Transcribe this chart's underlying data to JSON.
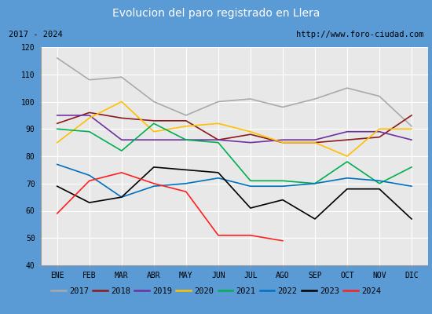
{
  "title": "Evolucion del paro registrado en Llera",
  "title_color": "#ffffff",
  "title_bg": "#5b9bd5",
  "subtitle_left": "2017 - 2024",
  "subtitle_right": "http://www.foro-ciudad.com",
  "months": [
    "ENE",
    "FEB",
    "MAR",
    "ABR",
    "MAY",
    "JUN",
    "JUL",
    "AGO",
    "SEP",
    "OCT",
    "NOV",
    "DIC"
  ],
  "ylim": [
    40,
    120
  ],
  "yticks": [
    40,
    50,
    60,
    70,
    80,
    90,
    100,
    110,
    120
  ],
  "series": {
    "2017": {
      "color": "#aaaaaa",
      "data": [
        116,
        108,
        109,
        100,
        95,
        100,
        101,
        98,
        101,
        105,
        102,
        91
      ]
    },
    "2018": {
      "color": "#8b1a1a",
      "data": [
        92,
        96,
        94,
        93,
        93,
        86,
        88,
        85,
        85,
        86,
        87,
        95
      ]
    },
    "2019": {
      "color": "#7030a0",
      "data": [
        95,
        95,
        86,
        86,
        86,
        86,
        85,
        86,
        86,
        89,
        89,
        86
      ]
    },
    "2020": {
      "color": "#ffc000",
      "data": [
        85,
        94,
        100,
        89,
        91,
        92,
        89,
        85,
        85,
        80,
        90,
        90
      ]
    },
    "2021": {
      "color": "#00b050",
      "data": [
        90,
        89,
        82,
        92,
        86,
        85,
        71,
        71,
        70,
        78,
        70,
        76
      ]
    },
    "2022": {
      "color": "#0070c0",
      "data": [
        77,
        73,
        65,
        69,
        70,
        72,
        69,
        69,
        70,
        72,
        71,
        69
      ]
    },
    "2023": {
      "color": "#000000",
      "data": [
        69,
        63,
        65,
        76,
        75,
        74,
        61,
        64,
        57,
        68,
        68,
        57
      ]
    },
    "2024": {
      "color": "#ff2020",
      "data": [
        59,
        71,
        74,
        70,
        67,
        51,
        51,
        49,
        null,
        null,
        null,
        null
      ]
    }
  }
}
